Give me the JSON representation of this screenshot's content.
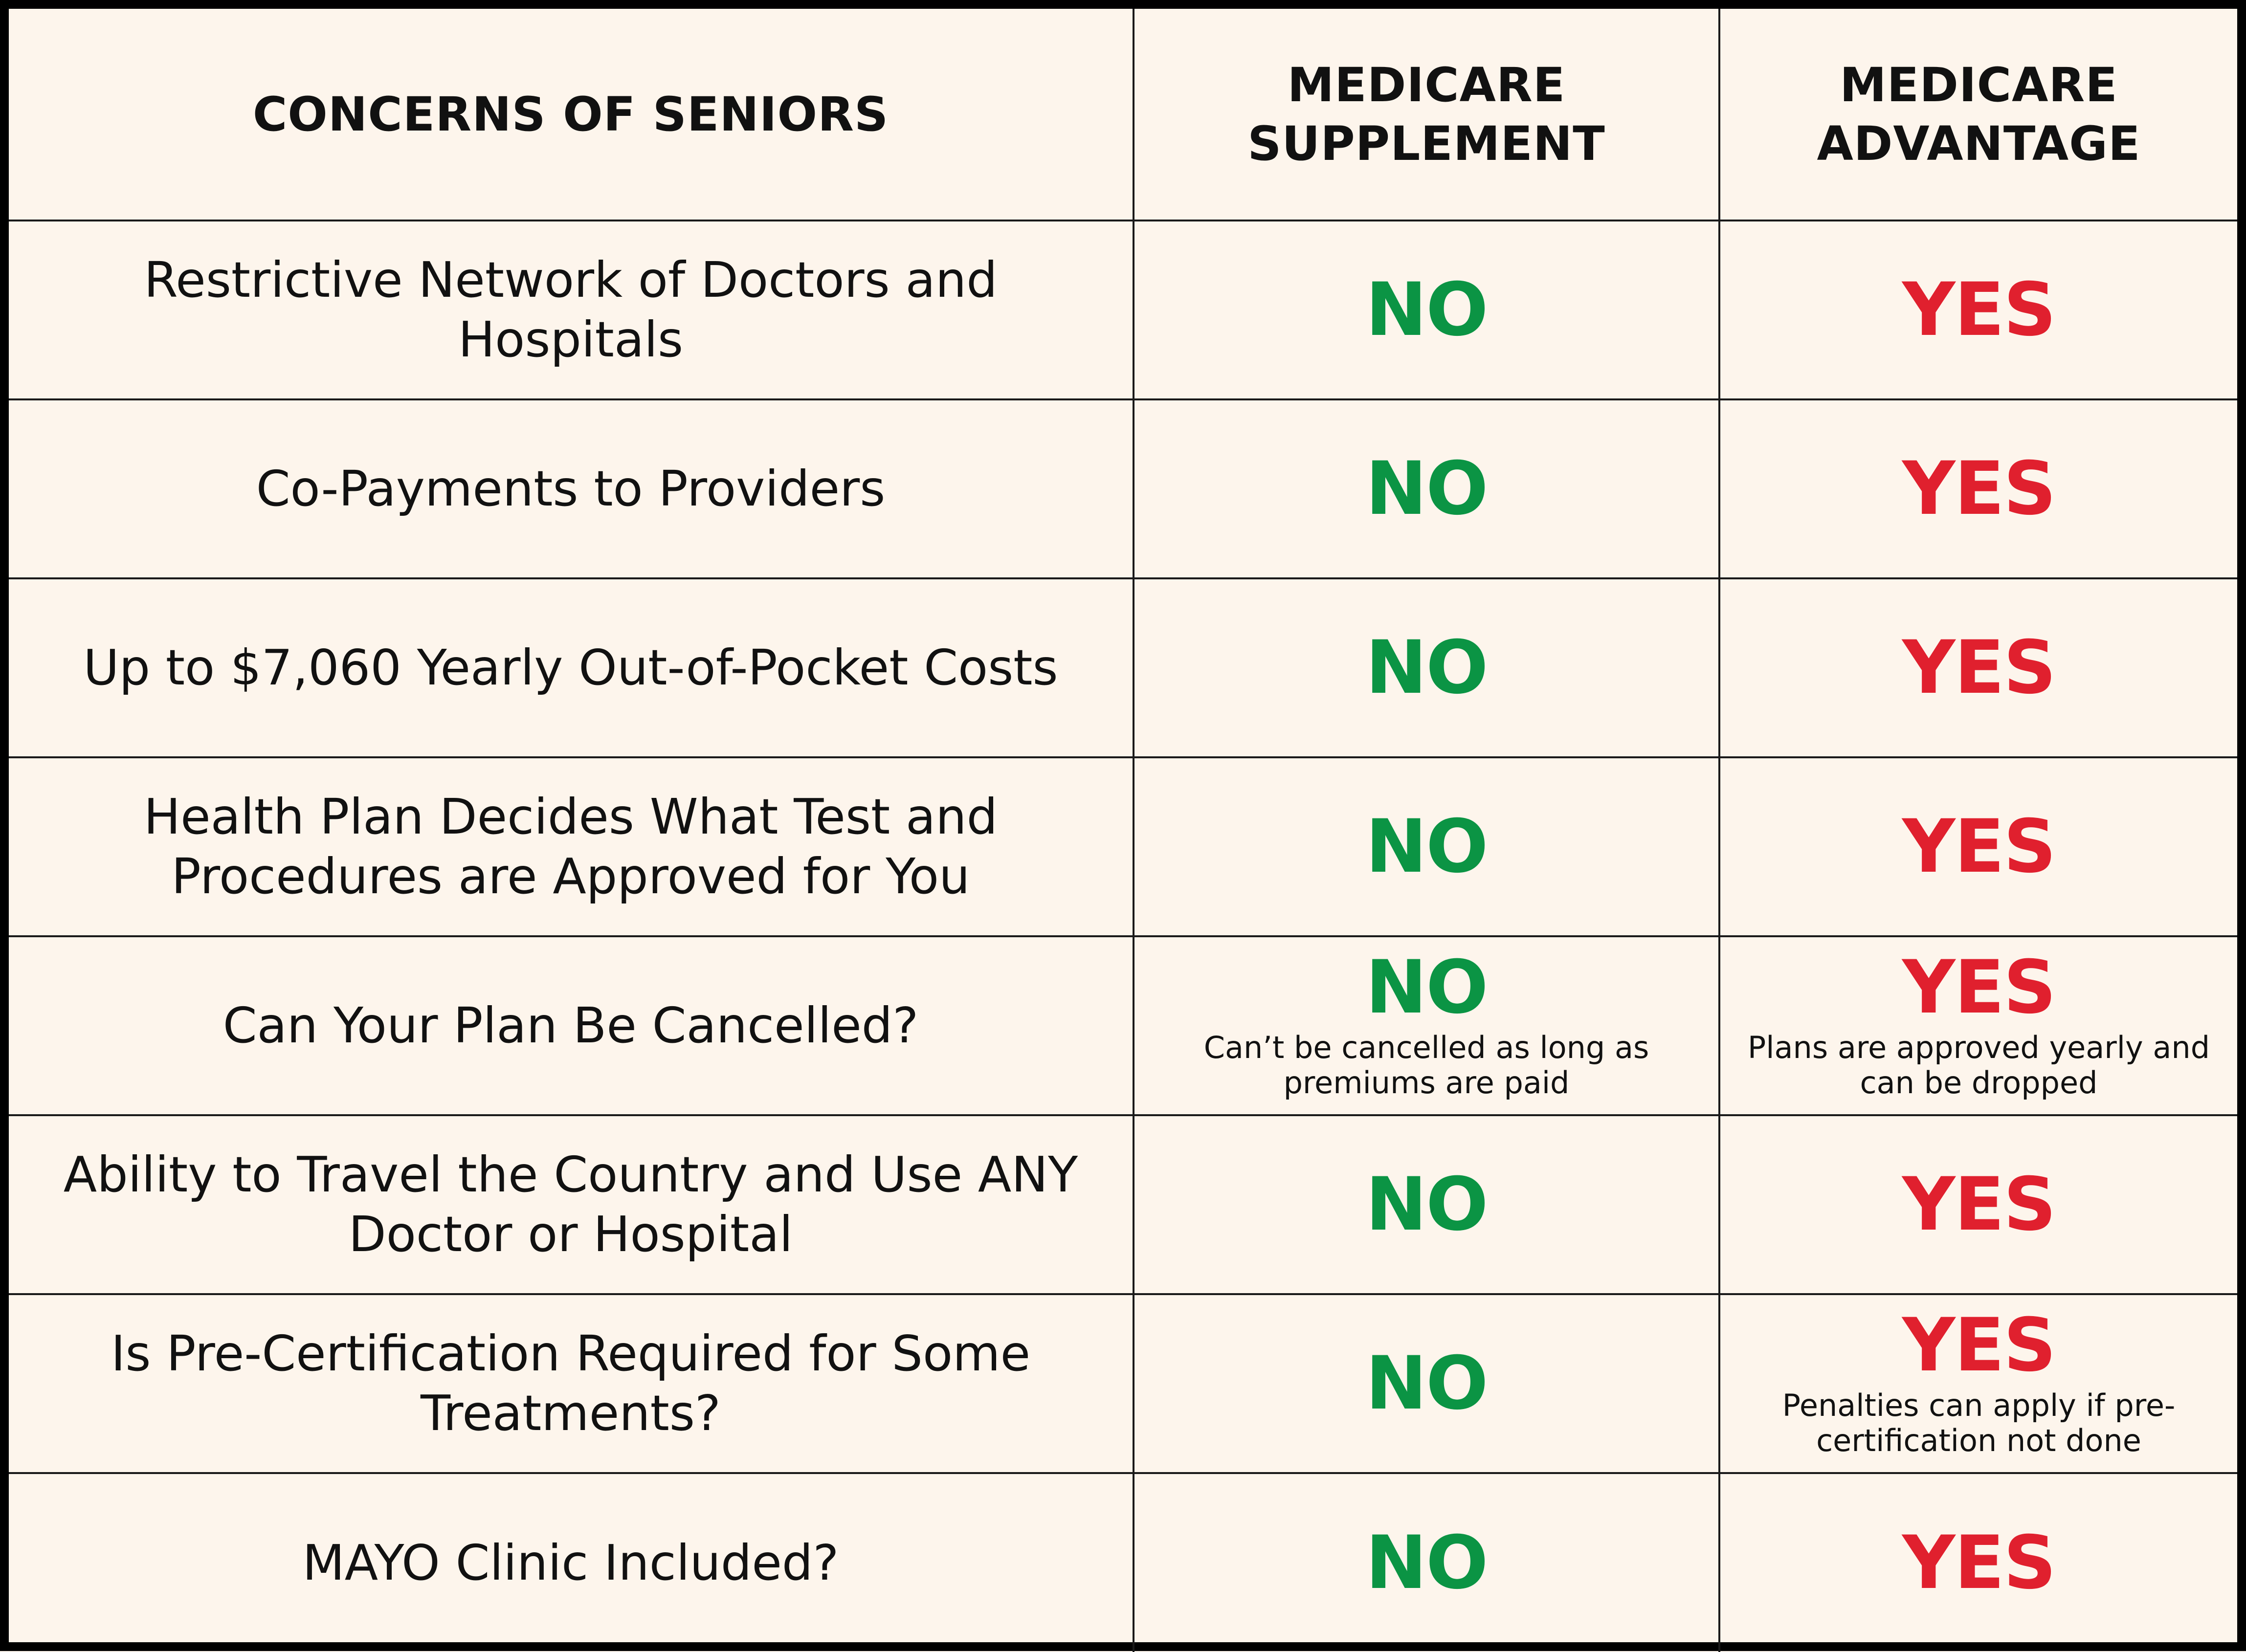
{
  "table": {
    "headers": {
      "concerns": "CONCERNS OF SENIORS",
      "supplement_line1": "MEDICARE",
      "supplement_line2": "SUPPLEMENT",
      "advantage_line1": "MEDICARE",
      "advantage_line2": "ADVANTAGE"
    },
    "rows": [
      {
        "concern": "Restrictive Network of Doctors and Hospitals",
        "supplement": "NO",
        "supplement_note": "",
        "advantage": "YES",
        "advantage_note": ""
      },
      {
        "concern": "Co-Payments to Providers",
        "supplement": "NO",
        "supplement_note": "",
        "advantage": "YES",
        "advantage_note": ""
      },
      {
        "concern": "Up to $7,060 Yearly Out-of-Pocket Costs",
        "supplement": "NO",
        "supplement_note": "",
        "advantage": "YES",
        "advantage_note": ""
      },
      {
        "concern": "Health Plan Decides What Test and Procedures are Approved for You",
        "supplement": "NO",
        "supplement_note": "",
        "advantage": "YES",
        "advantage_note": ""
      },
      {
        "concern": "Can Your Plan Be Cancelled?",
        "supplement": "NO",
        "supplement_note": "Can’t be cancelled as long as premiums are paid",
        "advantage": "YES",
        "advantage_note": "Plans are approved yearly and can be dropped"
      },
      {
        "concern": "Ability to Travel the Country and Use ANY Doctor or Hospital",
        "supplement": "NO",
        "supplement_note": "",
        "advantage": "YES",
        "advantage_note": ""
      },
      {
        "concern": "Is Pre-Certification Required for Some Treatments?",
        "supplement": "NO",
        "supplement_note": "",
        "advantage": "YES",
        "advantage_note": "Penalties can apply if pre-certification not done"
      },
      {
        "concern": "MAYO Clinic Included?",
        "supplement": "NO",
        "supplement_note": "",
        "advantage": "YES",
        "advantage_note": ""
      }
    ]
  },
  "colors": {
    "background": "#fdf5ec",
    "no_green": "#0b9444",
    "yes_red": "#e0202e",
    "border": "#000000"
  }
}
